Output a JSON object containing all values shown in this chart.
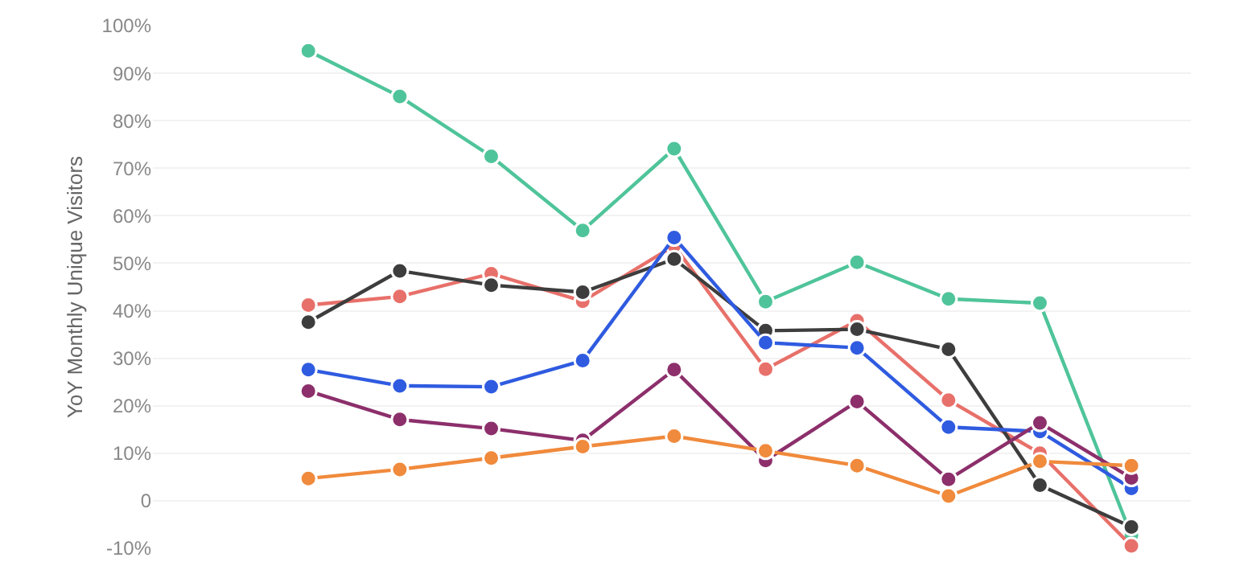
{
  "chart_data": {
    "type": "line",
    "ylabel": "YoY Monthly Unique Visitors",
    "categories": [
      null,
      null,
      null,
      null,
      null,
      null,
      null,
      null,
      null,
      null
    ],
    "series": [
      {
        "color": "#4fc49a",
        "values": [
          94.7,
          85.1,
          72.5,
          56.9,
          74.1,
          41.9,
          50.2,
          42.5,
          41.6,
          -7.3
        ]
      },
      {
        "color": "#e8706a",
        "values": [
          41.2,
          43.0,
          47.8,
          42.0,
          53.7,
          27.7,
          37.9,
          21.2,
          10.0,
          -9.5
        ]
      },
      {
        "color": "#3d3d3d",
        "values": [
          37.6,
          48.4,
          45.4,
          43.9,
          50.9,
          35.8,
          36.1,
          31.9,
          3.3,
          -5.5
        ]
      },
      {
        "color": "#2f5be0",
        "values": [
          27.6,
          24.2,
          24.0,
          29.5,
          55.4,
          33.3,
          32.2,
          15.5,
          14.6,
          2.6
        ]
      },
      {
        "color": "#8c2f6b",
        "values": [
          23.1,
          17.1,
          15.2,
          12.7,
          27.6,
          8.5,
          20.9,
          4.5,
          16.4,
          4.8
        ]
      },
      {
        "color": "#f08a3c",
        "values": [
          4.7,
          6.6,
          9.0,
          11.4,
          13.6,
          10.5,
          7.4,
          1.0,
          8.3,
          7.4
        ]
      }
    ],
    "ylim": [
      -10,
      100
    ],
    "yticks": [
      {
        "value": -10,
        "label": "-10%"
      },
      0,
      {
        "value": 10,
        "label": "10%"
      },
      {
        "value": 20,
        "label": "20%"
      },
      {
        "value": 30,
        "label": "30%"
      },
      {
        "value": 40,
        "label": "40%"
      },
      {
        "value": 50,
        "label": "50%"
      },
      {
        "value": 60,
        "label": "60%"
      },
      {
        "value": 70,
        "label": "70%"
      },
      {
        "value": 80,
        "label": "80%"
      },
      {
        "value": 90,
        "label": "90%"
      },
      {
        "value": 100,
        "label": "100%"
      }
    ],
    "grid": "y",
    "marker": "circle",
    "line_style": "solid",
    "tick_labels": "y"
  }
}
